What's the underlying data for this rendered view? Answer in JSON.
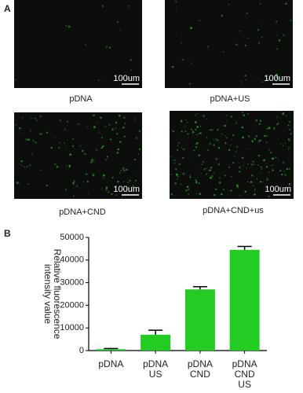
{
  "panel_a": {
    "label": "A",
    "images": [
      {
        "caption": "pDNA",
        "scale_bar": "100um"
      },
      {
        "caption": "pDNA+US",
        "scale_bar": "100um"
      },
      {
        "caption": "pDNA+CND",
        "scale_bar": "100um"
      },
      {
        "caption": "pDNA+CND+us",
        "scale_bar": "100um"
      }
    ]
  },
  "panel_b": {
    "label": "B"
  },
  "chart_data": {
    "type": "bar",
    "ylabel": "Relative fluorescence\nintensity value",
    "categories": [
      "pDNA",
      "pDNA\nUS",
      "pDNA\nCND",
      "pDNA\nCND\nUS"
    ],
    "values": [
      600,
      7000,
      27000,
      44500
    ],
    "errors": [
      300,
      2000,
      1200,
      1500
    ],
    "color": "#22cc22",
    "ylim": [
      0,
      50000
    ],
    "yticks": [
      0,
      10000,
      20000,
      30000,
      40000,
      50000
    ]
  }
}
